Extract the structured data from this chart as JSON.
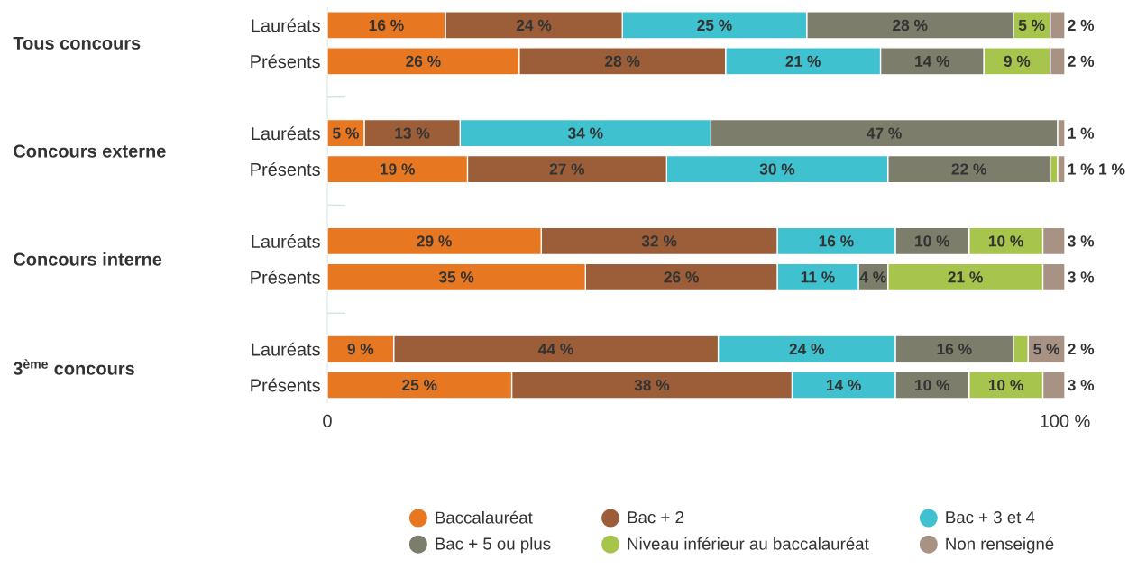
{
  "chart_data": {
    "type": "bar",
    "orientation": "horizontal",
    "stacked": true,
    "categories": [
      "Lauréats",
      "Présents",
      null,
      "Lauréats",
      "Présents",
      null,
      "Lauréats",
      "Présents",
      null,
      "Lauréats",
      "Présents"
    ],
    "xlim": [
      0,
      100
    ],
    "xticks": [
      0,
      {
        "value": 100,
        "label": "100 %"
      }
    ],
    "legend": "bottom",
    "annotations": [
      "Tous concours",
      "Concours externe",
      "Concours interne",
      "3$^{ème}$ concours"
    ],
    "series": [
      {
        "name": "Baccalauréat",
        "color": "#e87722",
        "values": [
          16,
          26,
          null,
          5,
          19,
          null,
          29,
          35,
          null,
          9,
          25
        ],
        "value_labels": [
          "16 %",
          "26 %",
          null,
          "5 %",
          "19 %",
          null,
          "29 %",
          "35 %",
          null,
          "9 %",
          "25 %"
        ]
      },
      {
        "name": "Bac + 2",
        "color": "#9b5e38",
        "values": [
          24,
          28,
          null,
          13,
          27,
          null,
          32,
          26,
          null,
          44,
          38
        ],
        "value_labels": [
          "24 %",
          "28 %",
          null,
          "13 %",
          "27 %",
          null,
          "32 %",
          "26 %",
          null,
          "44 %",
          "38 %"
        ]
      },
      {
        "name": "Bac + 3 et 4",
        "color": "#3fc1cf",
        "values": [
          25,
          21,
          null,
          34,
          30,
          null,
          16,
          11,
          null,
          24,
          14
        ],
        "value_labels": [
          "25 %",
          "21 %",
          null,
          "34 %",
          "30 %",
          null,
          "16 %",
          "11 %",
          null,
          "24 %",
          "14 %"
        ]
      },
      {
        "name": "Bac + 5 ou plus",
        "color": "#7d7d6b",
        "values": [
          28,
          14,
          null,
          47,
          22,
          null,
          10,
          4,
          null,
          16,
          10
        ],
        "value_labels": [
          "28 %",
          "14 %",
          null,
          "47 %",
          "22 %",
          null,
          "10 %",
          "4 %",
          null,
          "16 %",
          "10 %"
        ]
      },
      {
        "name": "Niveau inférieur au baccalauréat",
        "color": "#a7c44c",
        "values": [
          5,
          9,
          null,
          null,
          1,
          null,
          10,
          21,
          null,
          2,
          10
        ],
        "value_labels": [
          "5 %",
          "9 %",
          null,
          null,
          "1 %",
          null,
          "10 %",
          "21 %",
          null,
          "2 %",
          "10 %"
        ]
      },
      {
        "name": "Non renseigné",
        "color": "#a89283",
        "values": [
          2,
          2,
          null,
          1,
          1,
          null,
          3,
          3,
          null,
          5,
          3
        ],
        "value_labels": [
          "2 %",
          "2 %",
          null,
          "1 %",
          "1 %",
          null,
          "3 %",
          "3 %",
          null,
          "5 %",
          "3 %"
        ]
      }
    ]
  }
}
